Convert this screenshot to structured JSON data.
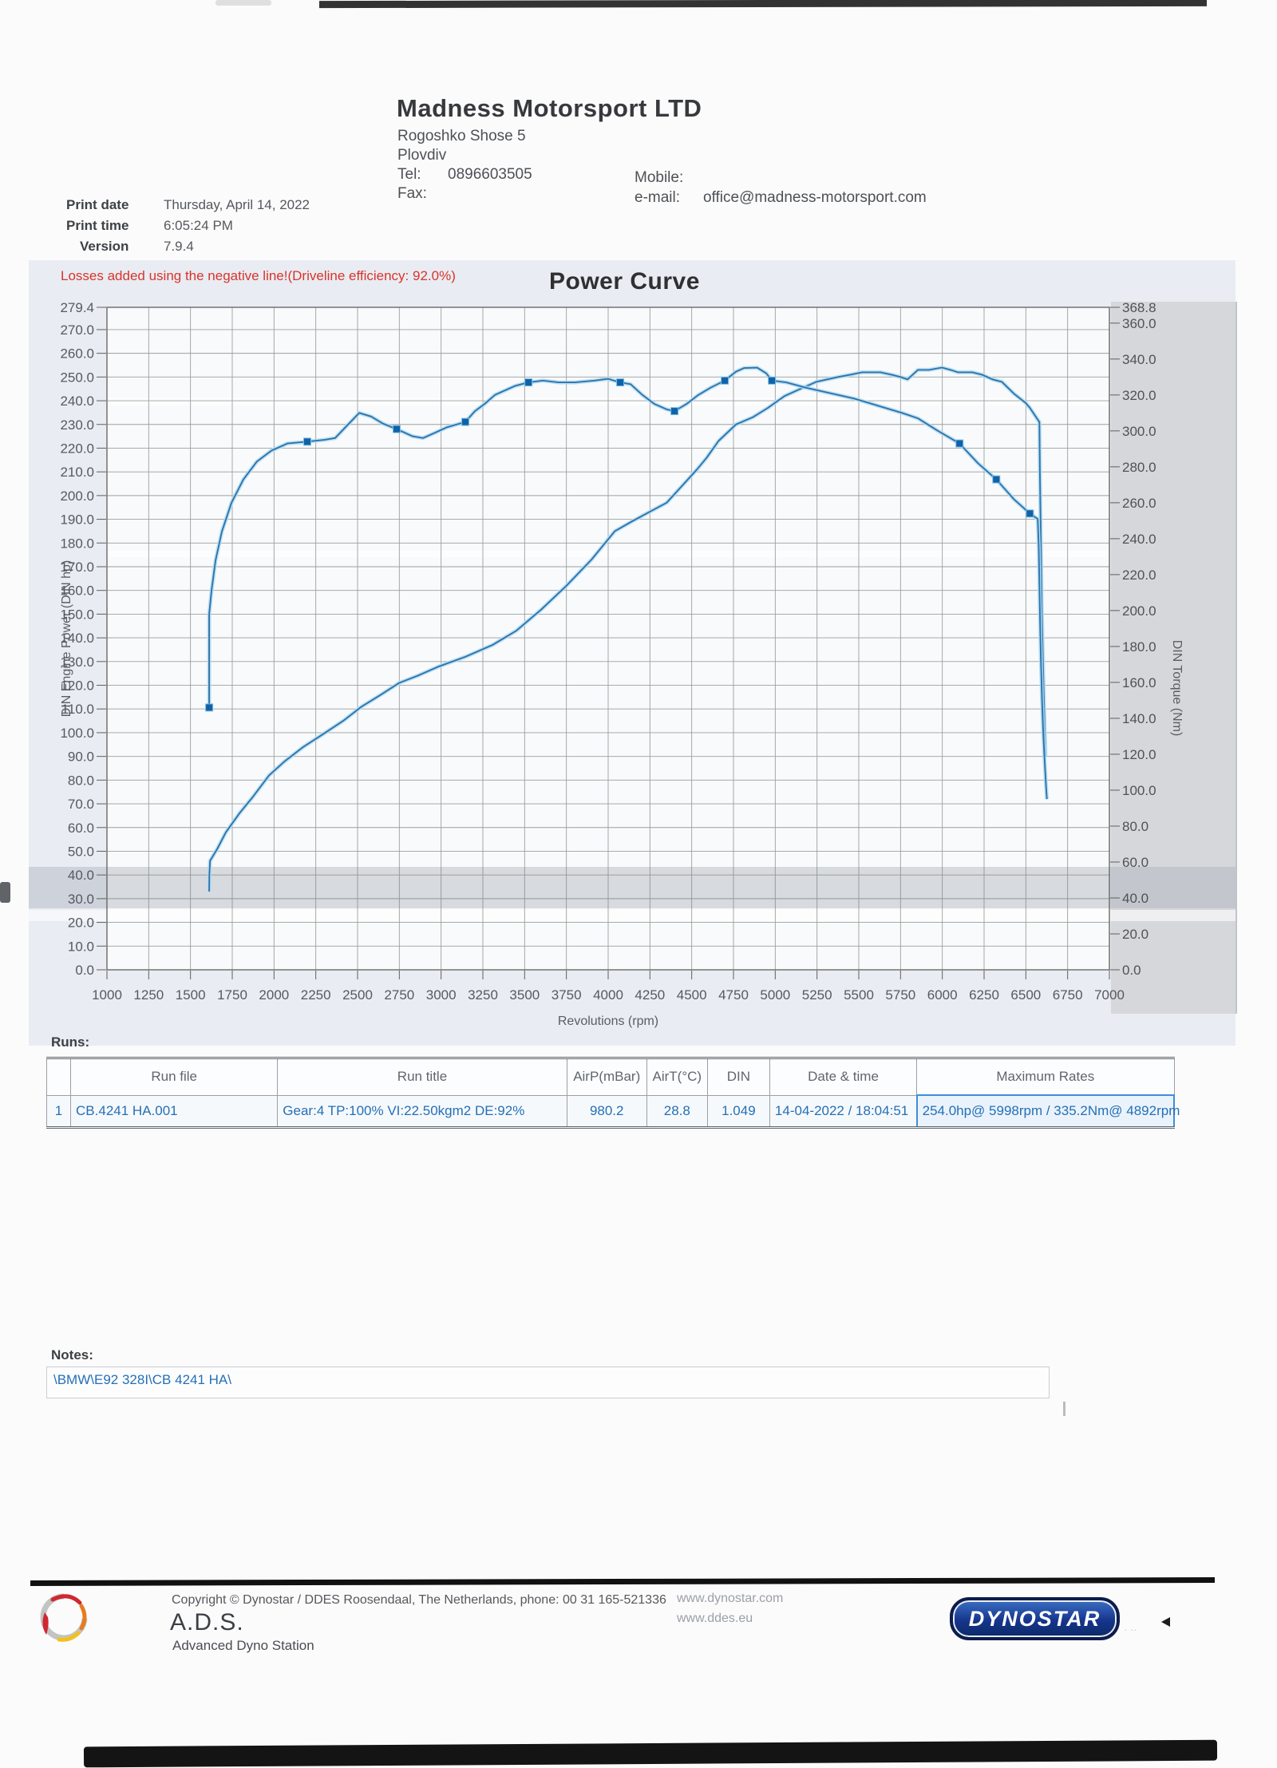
{
  "company": {
    "name": "Madness Motorsport LTD",
    "address_line1": "Rogoshko Shose 5",
    "address_line2": "Plovdiv",
    "tel_label": "Tel:",
    "tel": "0896603505",
    "fax_label": "Fax:",
    "mobile_label": "Mobile:",
    "email_label": "e-mail:",
    "email": "office@madness-motorsport.com"
  },
  "print_info": {
    "date_label": "Print date",
    "date": "Thursday, April 14, 2022",
    "time_label": "Print time",
    "time": "6:05:24 PM",
    "version_label": "Version",
    "version": "7.9.4"
  },
  "chart": {
    "warning": "Losses added using the negative line!(Driveline efficiency: 92.0%)",
    "title": "Power Curve",
    "y_left_title": "DIN Engine Power (DIN hp)",
    "y_right_title": "DIN Torque (Nm)",
    "x_title": "Revolutions (rpm)"
  },
  "chart_data": {
    "type": "line",
    "title": "Power Curve",
    "xlabel": "Revolutions (rpm)",
    "ylabel_left": "DIN Engine Power (DIN hp)",
    "ylabel_right": "DIN Torque (Nm)",
    "x_range": [
      1000,
      7000
    ],
    "y_left_range": [
      0,
      279.4
    ],
    "y_right_range": [
      0,
      368.8
    ],
    "grid": "on",
    "x_ticks": [
      1000,
      1250,
      1500,
      1750,
      2000,
      2250,
      2500,
      2750,
      3000,
      3250,
      3500,
      3750,
      4000,
      4250,
      4500,
      4750,
      5000,
      5250,
      5500,
      5750,
      6000,
      6250,
      6500,
      6750,
      7000
    ],
    "left_ticks": [
      279.4,
      270,
      260,
      250,
      240,
      230,
      220,
      210,
      200,
      190,
      180,
      170,
      160,
      150,
      140,
      130,
      120,
      110,
      100,
      90,
      80,
      70,
      60,
      50,
      40,
      30,
      20,
      10,
      0
    ],
    "right_ticks": [
      368.8,
      360,
      340,
      320,
      300,
      280,
      260,
      240,
      220,
      200,
      180,
      160,
      140,
      120,
      100,
      80,
      60,
      40,
      20,
      0
    ],
    "series": [
      {
        "name": "DIN Engine Power",
        "unit": "hp",
        "axis": "left",
        "points": [
          [
            1612,
            33
          ],
          [
            1613,
            40
          ],
          [
            1617,
            46
          ],
          [
            1660,
            51
          ],
          [
            1712,
            58
          ],
          [
            1793,
            66
          ],
          [
            1874,
            73
          ],
          [
            1970,
            82
          ],
          [
            2065,
            88
          ],
          [
            2175,
            94
          ],
          [
            2285,
            99
          ],
          [
            2414,
            105
          ],
          [
            2524,
            111
          ],
          [
            2639,
            116
          ],
          [
            2749,
            121
          ],
          [
            2859,
            124
          ],
          [
            2988,
            128
          ],
          [
            3145,
            132
          ],
          [
            3308,
            137
          ],
          [
            3450,
            143
          ],
          [
            3600,
            152
          ],
          [
            3750,
            162
          ],
          [
            3900,
            173
          ],
          [
            4040,
            185
          ],
          [
            4140,
            189
          ],
          [
            4244,
            193
          ],
          [
            4350,
            197
          ],
          [
            4454,
            205
          ],
          [
            4531,
            211
          ],
          [
            4590,
            216
          ],
          [
            4660,
            223
          ],
          [
            4765,
            230
          ],
          [
            4865,
            233
          ],
          [
            4956,
            237
          ],
          [
            5056,
            242
          ],
          [
            5150,
            245
          ],
          [
            5247,
            248
          ],
          [
            5376,
            250
          ],
          [
            5450,
            251
          ],
          [
            5520,
            252
          ],
          [
            5630,
            252
          ],
          [
            5696,
            251
          ],
          [
            5750,
            250
          ],
          [
            5792,
            249
          ],
          [
            5854,
            253
          ],
          [
            5920,
            253
          ],
          [
            5998,
            254
          ],
          [
            6050,
            253
          ],
          [
            6093,
            252
          ],
          [
            6180,
            252
          ],
          [
            6237,
            251
          ],
          [
            6300,
            249
          ],
          [
            6356,
            248
          ],
          [
            6428,
            243
          ],
          [
            6500,
            239
          ],
          [
            6524,
            237
          ],
          [
            6581,
            231
          ],
          [
            6584,
            210
          ],
          [
            6590,
            180
          ],
          [
            6596,
            150
          ],
          [
            6604,
            125
          ],
          [
            6612,
            103
          ],
          [
            6618,
            90
          ]
        ]
      },
      {
        "name": "DIN Torque",
        "unit": "Nm",
        "axis": "right",
        "points": [
          [
            1612,
            146
          ],
          [
            1612,
            198
          ],
          [
            1626,
            211
          ],
          [
            1650,
            228
          ],
          [
            1688,
            244
          ],
          [
            1745,
            260
          ],
          [
            1817,
            273
          ],
          [
            1898,
            283
          ],
          [
            1984,
            289
          ],
          [
            2080,
            293
          ],
          [
            2199,
            294
          ],
          [
            2300,
            295
          ],
          [
            2366,
            296
          ],
          [
            2448,
            304
          ],
          [
            2510,
            310
          ],
          [
            2581,
            308
          ],
          [
            2653,
            304
          ],
          [
            2734,
            301
          ],
          [
            2830,
            297
          ],
          [
            2892,
            296
          ],
          [
            2964,
            299
          ],
          [
            3035,
            302
          ],
          [
            3145,
            305
          ],
          [
            3202,
            311
          ],
          [
            3260,
            315
          ],
          [
            3322,
            320
          ],
          [
            3370,
            322
          ],
          [
            3441,
            325
          ],
          [
            3523,
            327
          ],
          [
            3609,
            328
          ],
          [
            3704,
            327
          ],
          [
            3800,
            327
          ],
          [
            3919,
            328
          ],
          [
            4000,
            329
          ],
          [
            4072,
            327
          ],
          [
            4134,
            326
          ],
          [
            4205,
            320
          ],
          [
            4277,
            315
          ],
          [
            4349,
            312
          ],
          [
            4397,
            311
          ],
          [
            4469,
            315
          ],
          [
            4540,
            320
          ],
          [
            4612,
            324
          ],
          [
            4698,
            328
          ],
          [
            4765,
            333
          ],
          [
            4813,
            335
          ],
          [
            4892,
            335.2
          ],
          [
            4947,
            332
          ],
          [
            4980,
            328
          ],
          [
            5066,
            327
          ],
          [
            5185,
            324
          ],
          [
            5329,
            321
          ],
          [
            5472,
            318
          ],
          [
            5615,
            314
          ],
          [
            5759,
            310
          ],
          [
            5854,
            307
          ],
          [
            5974,
            300
          ],
          [
            6103,
            293
          ],
          [
            6213,
            282
          ],
          [
            6323,
            273
          ],
          [
            6428,
            262
          ],
          [
            6524,
            254
          ],
          [
            6571,
            251
          ],
          [
            6577,
            235
          ],
          [
            6581,
            215
          ],
          [
            6585,
            195
          ],
          [
            6590,
            172
          ],
          [
            6597,
            150
          ],
          [
            6604,
            132
          ],
          [
            6612,
            117
          ],
          [
            6620,
            103
          ],
          [
            6626,
            95
          ]
        ]
      }
    ],
    "torque_markers": [
      [
        1612,
        146
      ],
      [
        2199,
        294
      ],
      [
        2734,
        301
      ],
      [
        3145,
        305
      ],
      [
        3523,
        327
      ],
      [
        4072,
        327
      ],
      [
        4397,
        311
      ],
      [
        4698,
        328
      ],
      [
        4980,
        328
      ],
      [
        6103,
        293
      ],
      [
        6323,
        273
      ],
      [
        6524,
        254
      ]
    ],
    "colors": {
      "curve": "#2e74ac",
      "curve_halo": "#b3dcf2",
      "marker": "#1061a8",
      "grid": "#7c827c",
      "warning_red": "#d9342b"
    }
  },
  "runs_table": {
    "label": "Runs:",
    "headers": {
      "num": "",
      "run_file": "Run file",
      "run_title": "Run title",
      "airp": "AirP(mBar)",
      "airt": "AirT(°C)",
      "din": "DIN",
      "datetime": "Date & time",
      "max_rates": "Maximum Rates"
    },
    "row": {
      "num": "1",
      "run_file": "CB.4241 HA.001",
      "run_title": "Gear:4 TP:100% VI:22.50kgm2 DE:92%",
      "airp": "980.2",
      "airt": "28.8",
      "din": "1.049",
      "datetime": "14-04-2022 / 18:04:51",
      "max_rates": "254.0hp@ 5998rpm / 335.2Nm@ 4892rpm"
    }
  },
  "notes": {
    "label": "Notes:",
    "text": "\\BMW\\E92 328I\\CB 4241 HA\\"
  },
  "footer": {
    "copyright": "Copyright © Dynostar / DDES  Roosendaal, The Netherlands, phone: 00 31 165-521336",
    "ads_title": "A.D.S.",
    "ads_subtitle": "Advanced Dyno Station",
    "site1": "www.dynostar.com",
    "site2": "www.ddes.eu",
    "logo_text": "DYNOSTAR"
  }
}
